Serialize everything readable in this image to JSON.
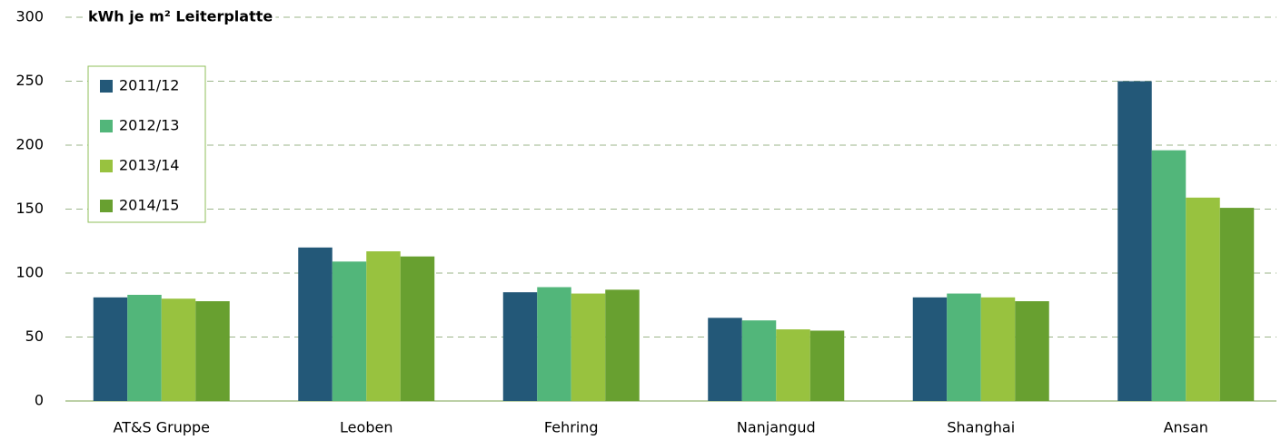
{
  "chart_data": {
    "type": "bar",
    "title": "kWh je m² Leiterplatte",
    "categories": [
      "AT&S Gruppe",
      "Leoben",
      "Fehring",
      "Nanjangud",
      "Shanghai",
      "Ansan"
    ],
    "series": [
      {
        "name": "2011/12",
        "color": "#235878",
        "values": [
          81,
          120,
          85,
          65,
          81,
          250
        ]
      },
      {
        "name": "2012/13",
        "color": "#52b67a",
        "values": [
          83,
          109,
          89,
          63,
          84,
          196
        ]
      },
      {
        "name": "2013/14",
        "color": "#98c23f",
        "values": [
          80,
          117,
          84,
          56,
          81,
          159
        ]
      },
      {
        "name": "2014/15",
        "color": "#68a030",
        "values": [
          78,
          113,
          87,
          55,
          78,
          151
        ]
      }
    ],
    "ylim": [
      0,
      300
    ],
    "yticks": [
      0,
      50,
      100,
      150,
      200,
      250,
      300
    ],
    "grid": true,
    "legend": "upper left"
  }
}
